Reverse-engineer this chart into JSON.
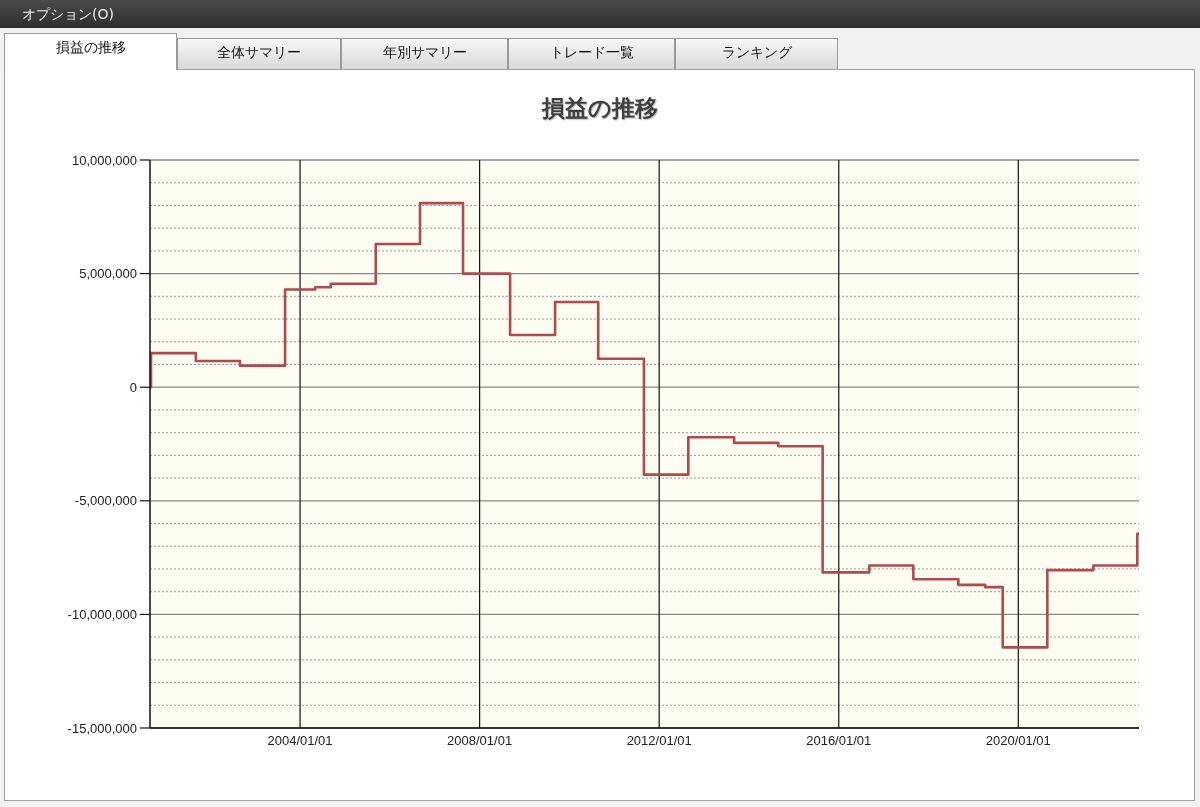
{
  "chart_data": {
    "type": "step",
    "title": "損益の推移",
    "annotations": [
      "オプション(O)",
      "損益の推移",
      "全体サマリー",
      "年別サマリー",
      "トレード一覧",
      "ランキング"
    ],
    "x": [
      "2000-08-28",
      "2000-09-05",
      "2001-09-05",
      "2002-08-30",
      "2003-09-01",
      "2004-05-03",
      "2004-09-07",
      "2005-09-08",
      "2006-09-03",
      "2007-08-19",
      "2008-09-05",
      "2009-09-06",
      "2010-08-23",
      "2011-08-30",
      "2012-08-25",
      "2013-09-02",
      "2014-08-27",
      "2015-08-23",
      "2016-09-06",
      "2017-08-30",
      "2018-08-31",
      "2019-04-06",
      "2019-08-27",
      "2020-08-24",
      "2021-09-03",
      "2022-08-26",
      "2022-09-09"
    ],
    "series": [
      {
        "color": "#b04a4e",
        "values": [
          0,
          1500000,
          1150000,
          950000,
          4300000,
          4400000,
          4550000,
          6300000,
          8100000,
          5000000,
          2300000,
          3750000,
          1250000,
          -3850000,
          -2200000,
          -2450000,
          -2600000,
          -8150000,
          -7850000,
          -8450000,
          -8700000,
          -8800000,
          -11450000,
          -8050000,
          -7850000,
          -6450000,
          -6450000
        ]
      }
    ],
    "xlim": [
      "2000-08-28",
      "2022-09-09"
    ],
    "xticks": [
      {
        "value": "2004-01-01",
        "label": "2004/01/01"
      },
      {
        "value": "2008-01-01",
        "label": "2008/01/01"
      },
      {
        "value": "2012-01-01",
        "label": "2012/01/01"
      },
      {
        "value": "2016-01-01",
        "label": "2016/01/01"
      },
      {
        "value": "2020-01-01",
        "label": "2020/01/01"
      }
    ],
    "ylim": [
      -15000000,
      10000000
    ],
    "yticks": [
      {
        "value": -15000000,
        "label": "-15,000,000"
      },
      {
        "value": -14000000,
        "label": null
      },
      {
        "value": -13000000,
        "label": null
      },
      {
        "value": -12000000,
        "label": null
      },
      {
        "value": -11000000,
        "label": null
      },
      {
        "value": -10000000,
        "label": "-10,000,000"
      },
      {
        "value": -9000000,
        "label": null
      },
      {
        "value": -8000000,
        "label": null
      },
      {
        "value": -7000000,
        "label": null
      },
      {
        "value": -6000000,
        "label": null
      },
      {
        "value": -5000000,
        "label": "-5,000,000"
      },
      {
        "value": -4000000,
        "label": null
      },
      {
        "value": -3000000,
        "label": null
      },
      {
        "value": -2000000,
        "label": null
      },
      {
        "value": -1000000,
        "label": null
      },
      {
        "value": 0,
        "label": "0"
      },
      {
        "value": 1000000,
        "label": null
      },
      {
        "value": 2000000,
        "label": null
      },
      {
        "value": 3000000,
        "label": null
      },
      {
        "value": 4000000,
        "label": null
      },
      {
        "value": 5000000,
        "label": "5,000,000"
      },
      {
        "value": 6000000,
        "label": null
      },
      {
        "value": 7000000,
        "label": null
      },
      {
        "value": 8000000,
        "label": null
      },
      {
        "value": 9000000,
        "label": null
      },
      {
        "value": 10000000,
        "label": "10,000,000"
      }
    ],
    "grid": true
  }
}
